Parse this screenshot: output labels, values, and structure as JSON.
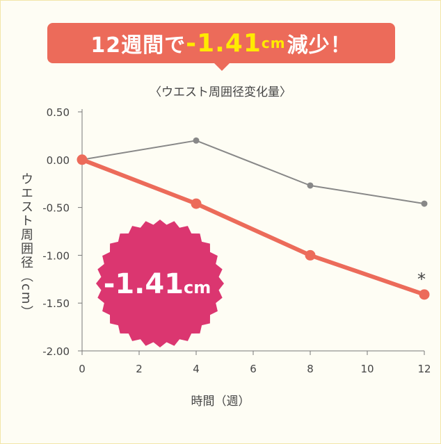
{
  "banner": {
    "prefix": "12週間で",
    "value": "-1.41",
    "unit": "cm",
    "suffix": "減少！"
  },
  "colors": {
    "accent": "#ec6b5a",
    "highlight": "#ffea00",
    "control_line": "#888888",
    "badge": "#db3670",
    "background": "#fefdf4"
  },
  "badge": {
    "value": "-1.41",
    "unit": "cm"
  },
  "chart_data": {
    "type": "line",
    "title": "〈ウエスト周囲径変化量〉",
    "xlabel": "時間（週）",
    "ylabel": "ウエスト周囲径（cm）",
    "xlim": [
      0,
      12
    ],
    "ylim": [
      -2.0,
      0.5
    ],
    "x_ticks": [
      0,
      2,
      4,
      6,
      8,
      10,
      12
    ],
    "x_tick_labels": [
      "0",
      "2",
      "4",
      "6",
      "8",
      "10",
      "12"
    ],
    "y_ticks": [
      0.5,
      0.0,
      -0.5,
      -1.0,
      -1.5,
      -2.0
    ],
    "y_tick_labels": [
      "0.50",
      "0.00",
      "-0.50",
      "-1.00",
      "-1.50",
      "-2.00"
    ],
    "x": [
      0,
      4,
      8,
      12
    ],
    "series": [
      {
        "values": [
          0.0,
          0.2,
          -0.27,
          -0.46
        ],
        "color": "#888888"
      },
      {
        "values": [
          0.0,
          -0.46,
          -1.0,
          -1.41
        ],
        "color": "#ec6b5a"
      }
    ],
    "annotation": {
      "text": "*",
      "x": 12,
      "series_index": 1
    },
    "grid": false
  }
}
